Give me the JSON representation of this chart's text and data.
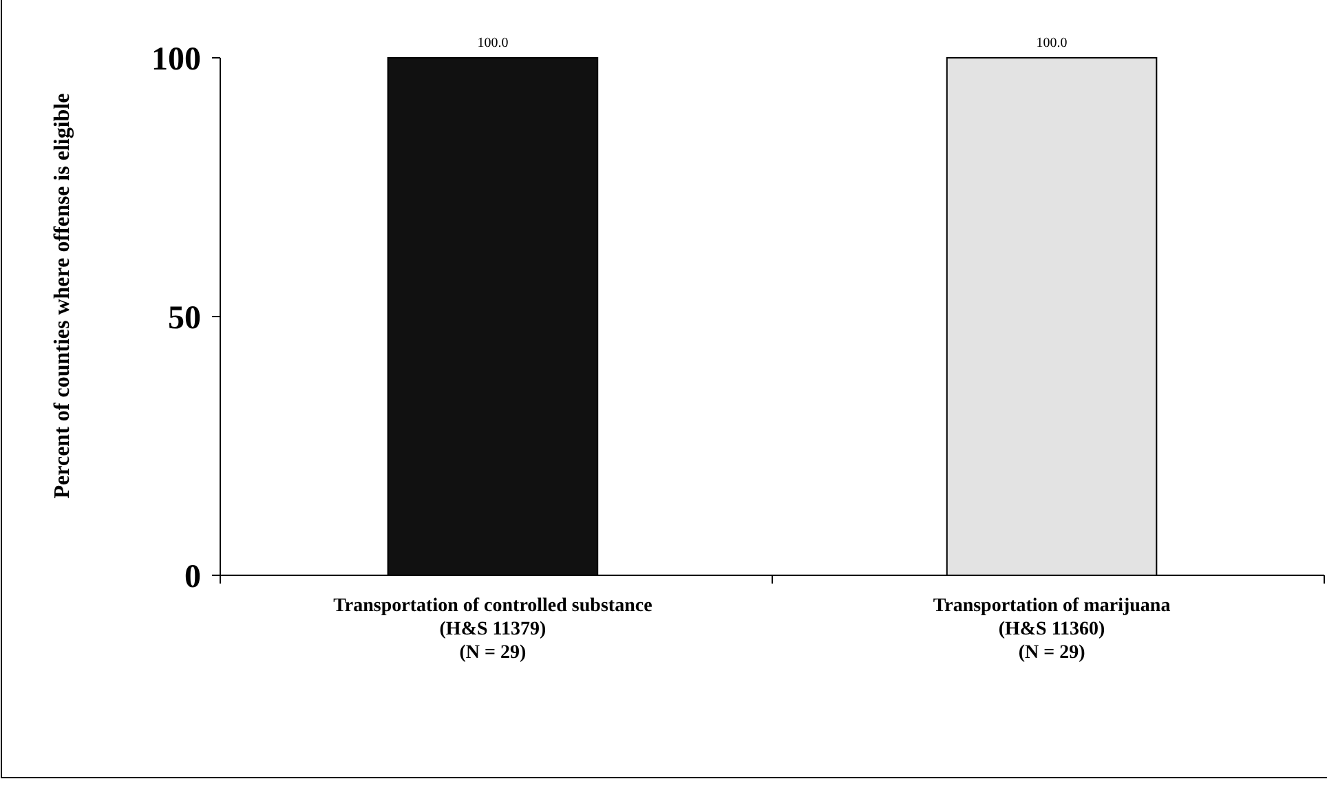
{
  "chart_data": {
    "type": "bar",
    "ylabel": "Percent of counties where offense is eligible",
    "categories": [
      "Transportation of controlled substance\n(H&S 11379)\n(N = 29)",
      "Transportation of marijuana\n(H&S 11360)\n(N = 29)"
    ],
    "values": [
      100,
      100
    ],
    "colors": [
      "#111111",
      "#e3e3e3"
    ],
    "value_labels": [
      "100.0",
      "100.0"
    ],
    "ylim": [
      0,
      100
    ],
    "yticks": [
      0,
      50,
      100
    ],
    "grid": false
  }
}
